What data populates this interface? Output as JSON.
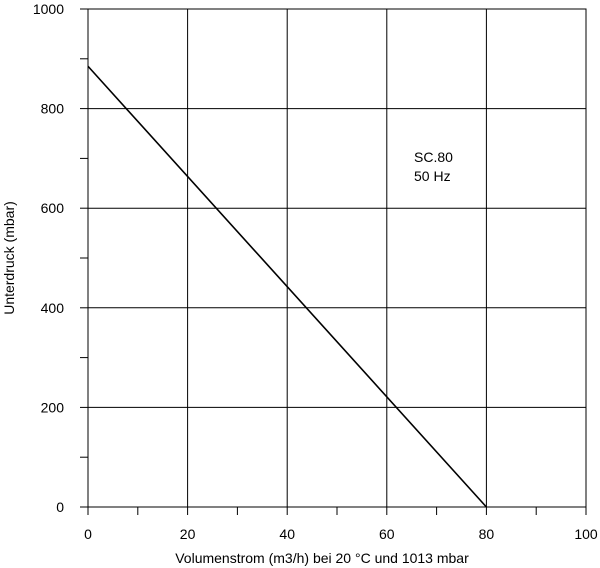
{
  "chart_data": {
    "type": "line",
    "xlabel": "Volumenstrom (m3/h) bei 20 °C und 1013 mbar",
    "ylabel": "Unterdruck (mbar)",
    "xlim": [
      0,
      100
    ],
    "ylim": [
      0,
      1000
    ],
    "x_ticks": [
      0,
      20,
      40,
      60,
      80,
      100
    ],
    "y_ticks": [
      0,
      200,
      400,
      600,
      800,
      1000
    ],
    "x_tick_labels": [
      "0",
      "20",
      "40",
      "60",
      "80",
      "100"
    ],
    "y_tick_labels": [
      "0",
      "200",
      "400",
      "600",
      "800",
      "1000"
    ],
    "grid": true,
    "annotations": [
      "SC.80",
      "50 Hz"
    ],
    "series": [
      {
        "x": [
          0,
          80
        ],
        "y": [
          885,
          0
        ]
      }
    ]
  }
}
